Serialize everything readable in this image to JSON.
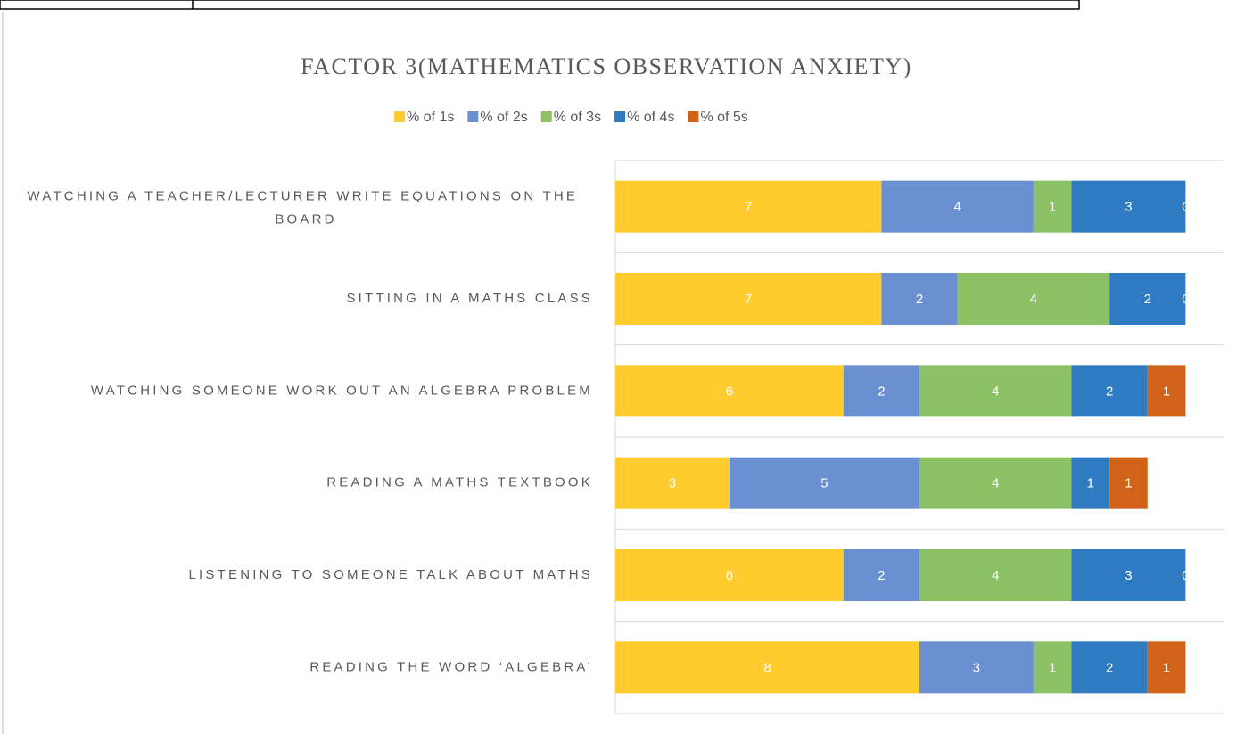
{
  "chart_data": {
    "type": "stacked-barh",
    "title": "FACTOR 3(MATHEMATICS OBSERVATION ANXIETY)",
    "categories": [
      "WATCHING A TEACHER/LECTURER WRITE EQUATIONS ON THE BOARD",
      "SITTING IN A MATHS CLASS",
      "WATCHING SOMEONE WORK OUT AN ALGEBRA PROBLEM",
      "READING A MATHS TEXTBOOK",
      "LISTENING TO SOMEONE TALK ABOUT MATHS",
      "READING THE WORD ‘ALGEBRA’"
    ],
    "series": [
      {
        "name": "% of 1s",
        "color": "#ffcb2f",
        "values": [
          7,
          7,
          6,
          3,
          6,
          8
        ]
      },
      {
        "name": "% of 2s",
        "color": "#6b90d1",
        "values": [
          4,
          2,
          2,
          5,
          2,
          3
        ]
      },
      {
        "name": "% of 3s",
        "color": "#8dc166",
        "values": [
          1,
          4,
          4,
          4,
          4,
          1
        ]
      },
      {
        "name": "% of 4s",
        "color": "#2f7bc1",
        "values": [
          3,
          2,
          2,
          1,
          3,
          2
        ]
      },
      {
        "name": "% of 5s",
        "color": "#d1621a",
        "values": [
          0,
          0,
          1,
          1,
          0,
          1
        ]
      }
    ],
    "xlim": [
      0,
      16
    ],
    "legend": "top"
  }
}
